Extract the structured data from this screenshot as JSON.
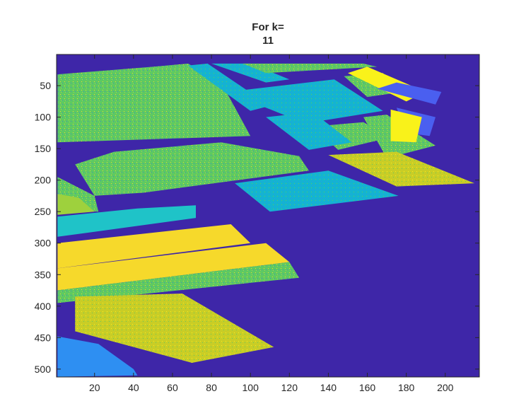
{
  "chart_data": {
    "type": "heatmap",
    "title": [
      "For k=",
      "11"
    ],
    "xlabel": "",
    "ylabel": "",
    "xlim": [
      0.5,
      217.5
    ],
    "ylim": [
      0.5,
      512.5
    ],
    "y_reversed": true,
    "xticks": [
      20,
      40,
      60,
      80,
      100,
      120,
      140,
      160,
      180,
      200
    ],
    "yticks": [
      50,
      100,
      150,
      200,
      250,
      300,
      350,
      400,
      450,
      500
    ],
    "grid": false,
    "colorbar": false,
    "colormap": "parula",
    "num_clusters": 11,
    "colors": {
      "background": "#3e26a8",
      "blue": "#4a5ff0",
      "light_blue": "#2e8ff2",
      "teal": "#14b4d0",
      "cyan": "#1fc3c8",
      "green": "#5ec962",
      "lime": "#9ed13d",
      "yellow_green": "#c9cd26",
      "yellow": "#f6d92b",
      "bright_yellow": "#f9f21a"
    },
    "regions": [
      {
        "cluster": "green",
        "polygon": [
          [
            1,
            32
          ],
          [
            50,
            20
          ],
          [
            68,
            15
          ],
          [
            85,
            45
          ],
          [
            100,
            130
          ],
          [
            1,
            140
          ]
        ]
      },
      {
        "cluster": "teal",
        "polygon": [
          [
            68,
            18
          ],
          [
            78,
            15
          ],
          [
            110,
            82
          ],
          [
            100,
            90
          ]
        ]
      },
      {
        "cluster": "teal",
        "polygon": [
          [
            80,
            15
          ],
          [
            100,
            15
          ],
          [
            120,
            40
          ],
          [
            108,
            45
          ]
        ]
      },
      {
        "cluster": "green",
        "polygon": [
          [
            96,
            15
          ],
          [
            158,
            15
          ],
          [
            165,
            20
          ],
          [
            108,
            30
          ]
        ]
      },
      {
        "cluster": "teal",
        "polygon": [
          [
            88,
            60
          ],
          [
            143,
            40
          ],
          [
            168,
            90
          ],
          [
            128,
            110
          ]
        ]
      },
      {
        "cluster": "green",
        "polygon": [
          [
            148,
            35
          ],
          [
            168,
            30
          ],
          [
            178,
            60
          ],
          [
            160,
            68
          ]
        ]
      },
      {
        "cluster": "bright_yellow",
        "polygon": [
          [
            150,
            30
          ],
          [
            160,
            20
          ],
          [
            190,
            60
          ],
          [
            180,
            75
          ]
        ]
      },
      {
        "cluster": "green",
        "polygon": [
          [
            132,
            115
          ],
          [
            158,
            108
          ],
          [
            172,
            132
          ],
          [
            145,
            152
          ]
        ]
      },
      {
        "cluster": "teal",
        "polygon": [
          [
            108,
            100
          ],
          [
            132,
            92
          ],
          [
            152,
            140
          ],
          [
            130,
            152
          ]
        ]
      },
      {
        "cluster": "green",
        "polygon": [
          [
            158,
            100
          ],
          [
            170,
            96
          ],
          [
            195,
            145
          ],
          [
            170,
            165
          ]
        ]
      },
      {
        "cluster": "blue",
        "polygon": [
          [
            165,
            55
          ],
          [
            175,
            45
          ],
          [
            198,
            60
          ],
          [
            195,
            80
          ]
        ]
      },
      {
        "cluster": "blue",
        "polygon": [
          [
            175,
            85
          ],
          [
            195,
            100
          ],
          [
            192,
            130
          ],
          [
            180,
            125
          ]
        ]
      },
      {
        "cluster": "bright_yellow",
        "polygon": [
          [
            172,
            88
          ],
          [
            188,
            100
          ],
          [
            185,
            140
          ],
          [
            172,
            138
          ]
        ]
      },
      {
        "cluster": "green",
        "polygon": [
          [
            10,
            175
          ],
          [
            30,
            155
          ],
          [
            85,
            140
          ],
          [
            125,
            162
          ],
          [
            130,
            185
          ],
          [
            45,
            220
          ],
          [
            20,
            225
          ]
        ]
      },
      {
        "cluster": "green",
        "polygon": [
          [
            1,
            195
          ],
          [
            20,
            225
          ],
          [
            22,
            250
          ],
          [
            1,
            245
          ]
        ]
      },
      {
        "cluster": "lime",
        "polygon": [
          [
            1,
            222
          ],
          [
            12,
            228
          ],
          [
            20,
            250
          ],
          [
            1,
            255
          ]
        ]
      },
      {
        "cluster": "yellow_green",
        "polygon": [
          [
            140,
            160
          ],
          [
            175,
            155
          ],
          [
            215,
            205
          ],
          [
            175,
            210
          ]
        ]
      },
      {
        "cluster": "teal",
        "polygon": [
          [
            92,
            205
          ],
          [
            140,
            185
          ],
          [
            176,
            225
          ],
          [
            110,
            250
          ]
        ]
      },
      {
        "cluster": "cyan",
        "polygon": [
          [
            1,
            258
          ],
          [
            42,
            245
          ],
          [
            72,
            240
          ],
          [
            72,
            260
          ],
          [
            1,
            290
          ]
        ]
      },
      {
        "cluster": "yellow",
        "polygon": [
          [
            1,
            300
          ],
          [
            90,
            270
          ],
          [
            100,
            300
          ],
          [
            1,
            340
          ]
        ]
      },
      {
        "cluster": "yellow",
        "polygon": [
          [
            1,
            340
          ],
          [
            108,
            300
          ],
          [
            120,
            330
          ],
          [
            1,
            375
          ]
        ]
      },
      {
        "cluster": "green",
        "polygon": [
          [
            1,
            375
          ],
          [
            120,
            330
          ],
          [
            125,
            355
          ],
          [
            1,
            395
          ]
        ]
      },
      {
        "cluster": "yellow_green",
        "polygon": [
          [
            10,
            385
          ],
          [
            65,
            380
          ],
          [
            112,
            465
          ],
          [
            70,
            490
          ],
          [
            10,
            440
          ]
        ]
      },
      {
        "cluster": "light_blue",
        "polygon": [
          [
            1,
            448
          ],
          [
            22,
            460
          ],
          [
            40,
            500
          ],
          [
            42,
            510
          ],
          [
            1,
            512
          ]
        ]
      }
    ]
  }
}
